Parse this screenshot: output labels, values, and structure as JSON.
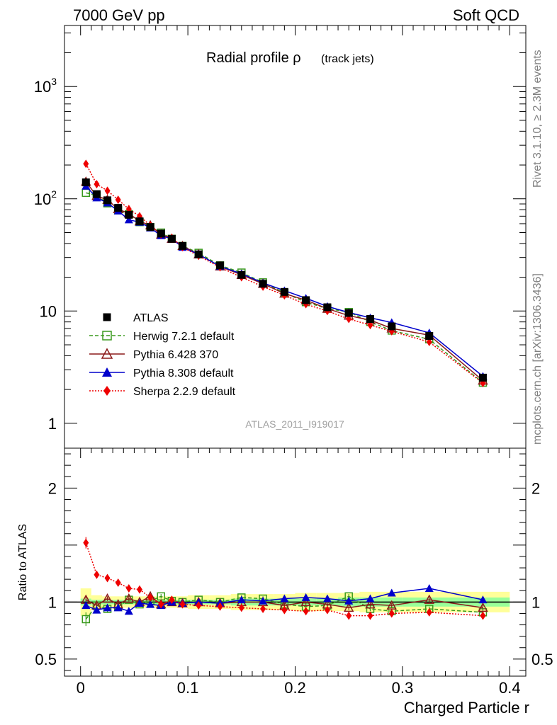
{
  "header": {
    "left": "7000 GeV pp",
    "right": "Soft QCD"
  },
  "side_labels": {
    "rivet": "Rivet 3.1.10, ≥ 2.3M events",
    "mcplots": "mcplots.cern.ch [arXiv:1306.3436]"
  },
  "colors": {
    "atlas": "#000000",
    "herwig": "#3a9a1e",
    "pythia6": "#8b1a1a",
    "pythia8": "#0000cc",
    "sherpa": "#ee0000",
    "band_yellow": "#ffff99",
    "band_green": "#99ff99"
  },
  "chart_data": [
    {
      "type": "line",
      "yscale": "log",
      "title_main": "Radial profile ",
      "title_symbol": "ρ",
      "title_sub": "(track jets)",
      "analysis_label": "ATLAS_2011_I919017",
      "xlim": [
        -0.015,
        0.415
      ],
      "ylim": [
        0.6,
        3500
      ],
      "ytick_labels": [
        {
          "value": 1000,
          "base": "10",
          "exp": "3"
        },
        {
          "value": 100,
          "base": "10",
          "exp": "2"
        },
        {
          "value": 10,
          "base": "10",
          "exp": ""
        },
        {
          "value": 1,
          "base": "1",
          "exp": ""
        }
      ],
      "x": [
        0.005,
        0.015,
        0.025,
        0.035,
        0.045,
        0.055,
        0.065,
        0.075,
        0.085,
        0.095,
        0.11,
        0.13,
        0.15,
        0.17,
        0.19,
        0.21,
        0.23,
        0.25,
        0.27,
        0.29,
        0.325,
        0.375
      ],
      "series": [
        {
          "name": "ATLAS",
          "key": "atlas",
          "values": [
            140,
            110,
            97,
            83,
            72,
            63,
            56,
            49,
            44,
            38,
            32,
            25.5,
            21,
            17.5,
            14.8,
            12.5,
            10.8,
            9.6,
            8.5,
            7.3,
            6.0,
            2.55
          ]
        },
        {
          "name": "Herwig 7.2.1 default",
          "key": "herwig",
          "values": [
            113,
            107,
            91,
            79,
            73,
            62,
            56,
            50,
            44,
            38,
            33,
            25.5,
            22,
            18,
            14.5,
            12,
            10.5,
            9.8,
            8.0,
            6.7,
            5.6,
            2.3
          ]
        },
        {
          "name": "Pythia 6.428 370",
          "key": "pythia6",
          "values": [
            142,
            106,
            98,
            81,
            74,
            63,
            58,
            48,
            44,
            38,
            32,
            25,
            21,
            17.5,
            14.3,
            12.5,
            10.5,
            9.1,
            8.3,
            7.0,
            6.1,
            2.4
          ]
        },
        {
          "name": "Pythia 8.308 default",
          "key": "pythia8",
          "values": [
            130,
            102,
            92,
            78,
            65,
            62,
            55,
            47,
            44,
            37,
            32,
            25,
            21.5,
            17.8,
            15.2,
            13,
            11,
            9.7,
            8.7,
            7.9,
            6.4,
            2.62
          ]
        },
        {
          "name": "Sherpa 2.2.9 default",
          "key": "sherpa",
          "values": [
            205,
            135,
            118,
            98,
            81,
            70,
            58,
            48,
            45,
            37,
            31,
            24.5,
            20,
            16.5,
            13.8,
            11.5,
            10,
            8.5,
            7.5,
            6.6,
            5.3,
            2.28
          ]
        }
      ]
    },
    {
      "type": "line",
      "yscale": "linear",
      "ylabel": "Ratio to ATLAS",
      "xlabel": "Charged Particle r",
      "xlim": [
        -0.015,
        0.415
      ],
      "ylim": [
        0.35,
        2.35
      ],
      "ytick_labels": [
        "2",
        "1",
        "0.5"
      ],
      "ytick_values": [
        2,
        1,
        0.5
      ],
      "xtick_labels": [
        "0",
        "0.1",
        "0.2",
        "0.3",
        "0.4"
      ],
      "xtick_values": [
        0,
        0.1,
        0.2,
        0.3,
        0.4
      ],
      "reference": 1,
      "x": [
        0.005,
        0.015,
        0.025,
        0.035,
        0.045,
        0.055,
        0.065,
        0.075,
        0.085,
        0.095,
        0.11,
        0.13,
        0.15,
        0.17,
        0.19,
        0.21,
        0.23,
        0.25,
        0.27,
        0.29,
        0.325,
        0.375
      ],
      "bin_edges": [
        0,
        0.01,
        0.02,
        0.03,
        0.04,
        0.05,
        0.06,
        0.07,
        0.08,
        0.09,
        0.1,
        0.12,
        0.14,
        0.16,
        0.18,
        0.2,
        0.22,
        0.24,
        0.26,
        0.28,
        0.3,
        0.35,
        0.4
      ],
      "band_total": [
        0.12,
        0.06,
        0.05,
        0.05,
        0.05,
        0.05,
        0.05,
        0.05,
        0.05,
        0.05,
        0.06,
        0.06,
        0.07,
        0.07,
        0.07,
        0.08,
        0.08,
        0.08,
        0.09,
        0.09,
        0.09,
        0.09
      ],
      "band_stat": [
        0.03,
        0.02,
        0.02,
        0.02,
        0.02,
        0.02,
        0.02,
        0.02,
        0.02,
        0.02,
        0.02,
        0.02,
        0.03,
        0.03,
        0.03,
        0.03,
        0.03,
        0.04,
        0.04,
        0.04,
        0.04,
        0.04
      ],
      "series": [
        {
          "name": "Herwig 7.2.1 default",
          "key": "herwig",
          "values": [
            0.85,
            0.97,
            0.94,
            0.96,
            1.02,
            0.98,
            1.01,
            1.05,
            1.01,
            1.0,
            1.02,
            1.0,
            1.04,
            1.03,
            0.98,
            0.96,
            0.97,
            1.05,
            0.94,
            0.92,
            0.94,
            0.91
          ],
          "errors": [
            0.06,
            0.03,
            0.03,
            0.02,
            0.02,
            0.02,
            0.02,
            0.02,
            0.02,
            0.02,
            0.02,
            0.02,
            0.02,
            0.02,
            0.02,
            0.02,
            0.02,
            0.02,
            0.02,
            0.02,
            0.02,
            0.02
          ]
        },
        {
          "name": "Pythia 6.428 370",
          "key": "pythia6",
          "values": [
            1.02,
            0.97,
            1.03,
            0.98,
            1.03,
            1.0,
            1.05,
            0.98,
            1.0,
            0.99,
            1.0,
            0.99,
            1.0,
            1.0,
            0.97,
            1.0,
            0.98,
            0.95,
            0.98,
            0.97,
            1.02,
            0.95
          ],
          "errors": [
            0.03,
            0.02,
            0.02,
            0.02,
            0.02,
            0.02,
            0.02,
            0.02,
            0.02,
            0.02,
            0.02,
            0.02,
            0.02,
            0.02,
            0.02,
            0.02,
            0.02,
            0.02,
            0.02,
            0.02,
            0.02,
            0.02
          ]
        },
        {
          "name": "Pythia 8.308 default",
          "key": "pythia8",
          "values": [
            0.97,
            0.93,
            0.95,
            0.95,
            0.92,
            0.99,
            0.98,
            0.97,
            1.0,
            0.99,
            1.0,
            0.99,
            1.02,
            1.01,
            1.03,
            1.04,
            1.03,
            1.01,
            1.03,
            1.08,
            1.12,
            1.02
          ],
          "errors": [
            0.03,
            0.02,
            0.02,
            0.02,
            0.02,
            0.02,
            0.02,
            0.02,
            0.02,
            0.02,
            0.02,
            0.02,
            0.02,
            0.02,
            0.02,
            0.02,
            0.02,
            0.02,
            0.02,
            0.02,
            0.02,
            0.02
          ]
        },
        {
          "name": "Sherpa 2.2.9 default",
          "key": "sherpa",
          "values": [
            1.52,
            1.24,
            1.21,
            1.17,
            1.12,
            1.11,
            1.04,
            0.98,
            1.02,
            0.98,
            0.97,
            0.96,
            0.95,
            0.94,
            0.93,
            0.92,
            0.93,
            0.88,
            0.88,
            0.9,
            0.91,
            0.88
          ],
          "errors": [
            0.05,
            0.03,
            0.03,
            0.02,
            0.02,
            0.02,
            0.02,
            0.02,
            0.02,
            0.02,
            0.02,
            0.02,
            0.02,
            0.02,
            0.02,
            0.02,
            0.02,
            0.02,
            0.02,
            0.02,
            0.02,
            0.02
          ]
        }
      ]
    }
  ]
}
